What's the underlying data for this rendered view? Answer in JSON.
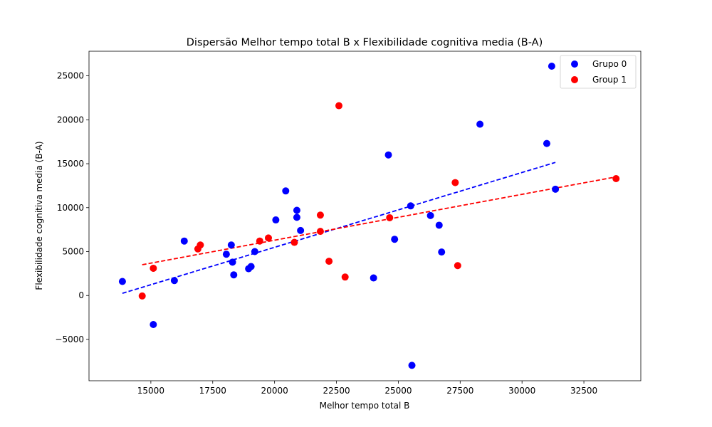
{
  "chart_data": {
    "type": "scatter",
    "title": "Dispersão Melhor tempo total B x Flexibilidade cognitiva media (B-A)",
    "xlabel": "Melhor tempo total B",
    "ylabel": "Flexibilidade cognitiva media (B-A)",
    "xlim": [
      12500,
      34800
    ],
    "ylim": [
      -9700,
      27800
    ],
    "x_ticks": [
      15000,
      17500,
      20000,
      22500,
      25000,
      27500,
      30000,
      32500
    ],
    "x_tick_labels": [
      "15000",
      "17500",
      "20000",
      "22500",
      "25000",
      "27500",
      "30000",
      "32500"
    ],
    "y_ticks": [
      -5000,
      0,
      5000,
      10000,
      15000,
      20000,
      25000
    ],
    "y_tick_labels": [
      "−5000",
      "0",
      "5000",
      "10000",
      "15000",
      "20000",
      "25000"
    ],
    "grid": false,
    "legend_position": "top-right",
    "series": [
      {
        "name": "Grupo 0",
        "color": "#0000ff",
        "points": [
          [
            13850,
            1600
          ],
          [
            15100,
            -3300
          ],
          [
            15950,
            1700
          ],
          [
            16350,
            6200
          ],
          [
            18050,
            4700
          ],
          [
            18250,
            5750
          ],
          [
            18300,
            3800
          ],
          [
            18350,
            2350
          ],
          [
            18950,
            3050
          ],
          [
            19050,
            3300
          ],
          [
            19200,
            5000
          ],
          [
            20050,
            8600
          ],
          [
            20450,
            11900
          ],
          [
            20900,
            9700
          ],
          [
            20900,
            8900
          ],
          [
            21050,
            7400
          ],
          [
            24000,
            2000
          ],
          [
            24600,
            16000
          ],
          [
            24850,
            6400
          ],
          [
            25500,
            10200
          ],
          [
            25550,
            -7950
          ],
          [
            26300,
            9100
          ],
          [
            26650,
            8000
          ],
          [
            26750,
            4950
          ],
          [
            28300,
            19500
          ],
          [
            31000,
            17300
          ],
          [
            31200,
            26100
          ],
          [
            31350,
            12100
          ]
        ],
        "trend": {
          "x": [
            13850,
            31350
          ],
          "y": [
            250,
            15150
          ]
        }
      },
      {
        "name": "Group 1",
        "color": "#ff0000",
        "points": [
          [
            14650,
            -50
          ],
          [
            15100,
            3100
          ],
          [
            16900,
            5300
          ],
          [
            17000,
            5750
          ],
          [
            19400,
            6200
          ],
          [
            19750,
            6550
          ],
          [
            20800,
            6050
          ],
          [
            21850,
            9150
          ],
          [
            21850,
            7300
          ],
          [
            22200,
            3900
          ],
          [
            22600,
            21600
          ],
          [
            22850,
            2100
          ],
          [
            24650,
            8850
          ],
          [
            27300,
            12850
          ],
          [
            27400,
            3400
          ],
          [
            33800,
            13300
          ]
        ],
        "trend": {
          "x": [
            14650,
            33800
          ],
          "y": [
            3500,
            13500
          ]
        }
      }
    ]
  }
}
